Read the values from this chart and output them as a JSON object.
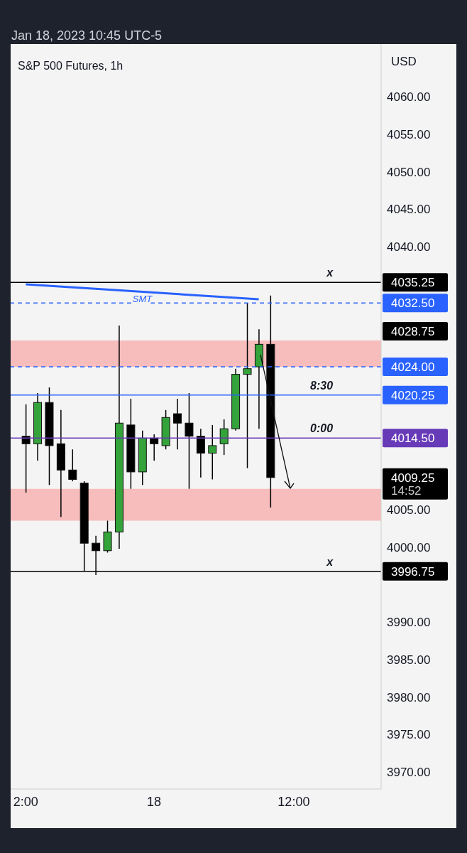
{
  "chart_data": {
    "type": "candlestick",
    "title": "S&P 500 Futures, 1h",
    "ylabel": "USD",
    "annotations": [
      "Jan 18, 2023 10:45 UTC-5",
      "4028.75",
      "4009.25",
      "14:52",
      {
        "text": "x",
        "y": 4035.25
      },
      {
        "text": "8:30",
        "y": 4020.25
      },
      {
        "text": "0:00",
        "y": 4014.5
      },
      {
        "text": "x",
        "y": 3996.75
      }
    ],
    "categories": [
      "2:00",
      null,
      null,
      null,
      null,
      null,
      null,
      null,
      null,
      null,
      null,
      "18",
      null,
      null,
      null,
      null,
      null,
      null,
      null,
      null,
      null,
      null,
      null,
      "12:00",
      null,
      null,
      null,
      null,
      null,
      null,
      null
    ],
    "ohlc": [
      [
        4014.75,
        4019,
        4007.25,
        4013.75
      ],
      [
        4013.75,
        4020.5,
        4011.5,
        4019.25
      ],
      [
        4019.25,
        4021.25,
        4008.25,
        4013.5
      ],
      [
        4013.75,
        4018.25,
        4004,
        4010.25
      ],
      [
        4010.25,
        4013,
        4008.75,
        4009
      ],
      [
        4008.5,
        4008.75,
        3996.75,
        4000.5
      ],
      [
        4000.5,
        4001.5,
        3996.25,
        3999.5
      ],
      [
        3999.5,
        4003.5,
        3999.25,
        4002
      ],
      [
        4002,
        4029.5,
        3999.75,
        4016.5
      ],
      [
        4016.25,
        4019.75,
        4007.75,
        4010
      ],
      [
        4010,
        4015.5,
        4008.25,
        4014.5
      ],
      [
        4014.5,
        4015,
        4011.5,
        4013.75
      ],
      [
        4013.5,
        4018.25,
        4013,
        4017.25
      ],
      [
        4017.75,
        4019.75,
        4013,
        4016.5
      ],
      [
        4016.5,
        4020.5,
        4007.75,
        4014.75
      ],
      [
        4014.75,
        4015.75,
        4009.25,
        4012.5
      ],
      [
        4012.5,
        4016.25,
        4009,
        4013.5
      ],
      [
        4013.75,
        4017,
        4012.25,
        4015.75
      ],
      [
        4015.75,
        4023.75,
        4015.5,
        4023
      ],
      [
        4023,
        4032.5,
        4010.5,
        4023.75
      ],
      [
        4024,
        4029,
        4015.75,
        4027
      ],
      [
        4027,
        4033.5,
        4005.25,
        4009.25
      ],
      null,
      null,
      null,
      null,
      null,
      null,
      null,
      null,
      null
    ],
    "colors": [
      "#000000",
      "#34a33a",
      "#000000",
      "#000000",
      "#000000",
      "#000000",
      "#000000",
      "#34a33a",
      "#34a33a",
      "#000000",
      "#34a33a",
      "#000000",
      "#34a33a",
      "#000000",
      "#000000",
      "#000000",
      "#34a33a",
      "#34a33a",
      "#34a33a",
      "#34a33a",
      "#34a33a",
      "#000000",
      null,
      null,
      null,
      null,
      null,
      null,
      null,
      null,
      null
    ],
    "series": [
      {
        "type": "line",
        "name": "SMT",
        "color": "#2962ff",
        "values": [
          4035,
          null,
          null,
          null,
          null,
          null,
          null,
          null,
          null,
          null,
          null,
          null,
          null,
          null,
          null,
          null,
          null,
          null,
          null,
          null,
          4033,
          null,
          null,
          null,
          null,
          null,
          null,
          null,
          null,
          null,
          null
        ]
      }
    ],
    "ylim": [
      3967.75,
      4067
    ],
    "yticks": [
      {
        "value": 4060,
        "label": "4060.00"
      },
      {
        "value": 4055,
        "label": "4055.00"
      },
      {
        "value": 4050,
        "label": "4050.00"
      },
      {
        "value": 4045,
        "label": "4045.00"
      },
      {
        "value": 4040,
        "label": "4040.00"
      },
      {
        "value": 4005,
        "label": "4005.00"
      },
      {
        "value": 4000,
        "label": "4000.00"
      },
      {
        "value": 3990,
        "label": "3990.00"
      },
      {
        "value": 3985,
        "label": "3985.00"
      },
      {
        "value": 3980,
        "label": "3980.00"
      },
      {
        "value": 3975,
        "label": "3975.00"
      },
      {
        "value": 3970,
        "label": "3970.00"
      }
    ],
    "ref_lines": [
      {
        "axis": "y",
        "value": 4035.25,
        "label": "4035.25",
        "color": "#000000",
        "line_style": "solid"
      },
      {
        "axis": "y",
        "value": 4032.5,
        "label": "4032.50",
        "color": "#2962ff",
        "line_style": "dashed"
      },
      {
        "axis": "y",
        "value": 4024,
        "label": "4024.00",
        "color": "#2962ff",
        "line_style": "dashed"
      },
      {
        "axis": "y",
        "value": 4020.25,
        "label": "4020.25",
        "color": "#2962ff",
        "line_style": "solid"
      },
      {
        "axis": "y",
        "value": 4014.5,
        "label": "4014.50",
        "color": "#673ab7",
        "line_style": "solid"
      },
      {
        "axis": "y",
        "value": 3996.75,
        "label": "3996.75",
        "color": "#000000",
        "line_style": "solid"
      }
    ],
    "bands": [
      {
        "axis": "y",
        "from": 4024,
        "to": 4027.5,
        "color": "#f7bcbc"
      },
      {
        "axis": "y",
        "from": 4003.5,
        "to": 4007.75,
        "color": "#f7bcbc"
      }
    ]
  }
}
